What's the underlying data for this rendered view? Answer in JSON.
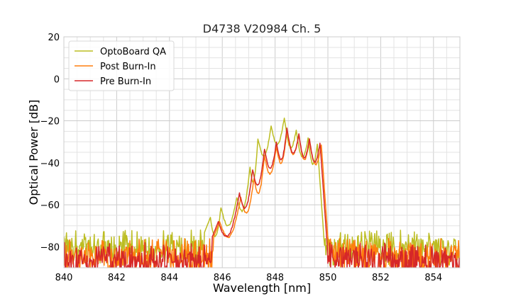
{
  "chart_data": {
    "type": "line",
    "title": "D4738 V20984 Ch. 5",
    "xlabel": "Wavelength [nm]",
    "ylabel": "Optical Power [dB]",
    "xlim": [
      840,
      855
    ],
    "ylim": [
      -90,
      20
    ],
    "xticks": [
      "840",
      "842",
      "844",
      "846",
      "848",
      "850",
      "852",
      "854"
    ],
    "yticks": [
      "−80",
      "−60",
      "−40",
      "−20",
      "0",
      "20"
    ],
    "grid": true,
    "legend_position": "top-left",
    "series": [
      {
        "name": "OptoBoard QA",
        "color": "#bcbd22",
        "noise_floor": -76,
        "peaks": [
          {
            "x": 845.55,
            "y": -66
          },
          {
            "x": 845.95,
            "y": -61
          },
          {
            "x": 846.55,
            "y": -56
          },
          {
            "x": 847.05,
            "y": -42
          },
          {
            "x": 847.35,
            "y": -28
          },
          {
            "x": 847.85,
            "y": -22
          },
          {
            "x": 848.35,
            "y": -18
          },
          {
            "x": 848.8,
            "y": -24
          },
          {
            "x": 849.25,
            "y": -28
          },
          {
            "x": 849.6,
            "y": -31
          }
        ]
      },
      {
        "name": "Post Burn-In",
        "color": "#ff7f0e",
        "noise_floor": -80,
        "peaks": [
          {
            "x": 845.9,
            "y": -68
          },
          {
            "x": 846.7,
            "y": -56
          },
          {
            "x": 847.2,
            "y": -47
          },
          {
            "x": 847.6,
            "y": -36
          },
          {
            "x": 848.05,
            "y": -32
          },
          {
            "x": 848.45,
            "y": -24
          },
          {
            "x": 848.9,
            "y": -26
          },
          {
            "x": 849.3,
            "y": -29
          },
          {
            "x": 849.75,
            "y": -31
          }
        ]
      },
      {
        "name": "Pre Burn-In",
        "color": "#d62728",
        "noise_floor": -82,
        "peaks": [
          {
            "x": 845.85,
            "y": -68
          },
          {
            "x": 846.65,
            "y": -54
          },
          {
            "x": 847.15,
            "y": -43
          },
          {
            "x": 847.6,
            "y": -33
          },
          {
            "x": 848.05,
            "y": -30
          },
          {
            "x": 848.45,
            "y": -23
          },
          {
            "x": 848.9,
            "y": -26
          },
          {
            "x": 849.3,
            "y": -28
          },
          {
            "x": 849.7,
            "y": -30
          }
        ]
      }
    ]
  }
}
